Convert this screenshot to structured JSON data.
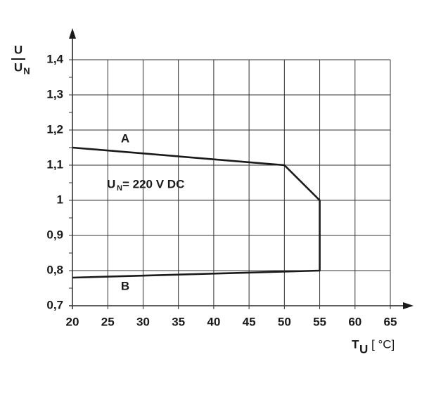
{
  "chart_data": {
    "type": "line",
    "ylabel": {
      "numerator": "U",
      "denominator": "U",
      "denominator_sub": "N"
    },
    "xlabel": {
      "symbol": "T",
      "sub": "U",
      "unit": "[ °C]"
    },
    "x": [
      20,
      50,
      55,
      55,
      20
    ],
    "series": [
      {
        "color": "#1a1a1a",
        "values": [
          1.15,
          1.1,
          1.0,
          0.8,
          0.78
        ]
      }
    ],
    "annotations": [
      {
        "text": "A"
      },
      {
        "text": "B"
      },
      {
        "text": "U",
        "sub": "N",
        "rest": "= 220 V DC"
      }
    ],
    "xlim": [
      20,
      65
    ],
    "xticks": [
      20,
      25,
      30,
      35,
      40,
      45,
      50,
      55,
      60,
      65
    ],
    "ylim": [
      0.7,
      1.4
    ],
    "yticks": [
      {
        "value": 0.7,
        "label": "0,7"
      },
      {
        "value": 0.8,
        "label": "0,8"
      },
      {
        "value": 0.9,
        "label": "0,9"
      },
      1,
      {
        "value": 1.1,
        "label": "1,1"
      },
      {
        "value": 1.2,
        "label": "1,2"
      },
      {
        "value": 1.3,
        "label": "1,3"
      },
      {
        "value": 1.4,
        "label": "1,4"
      }
    ],
    "yminorticks": [
      0.75,
      0.85,
      0.95,
      1.05,
      1.15,
      1.25,
      1.35
    ],
    "grid": true
  }
}
